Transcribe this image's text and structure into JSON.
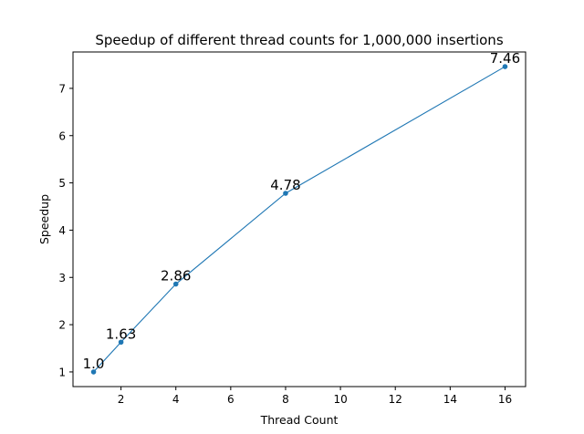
{
  "chart_data": {
    "type": "line",
    "title": "Speedup of different thread counts for 1,000,000 insertions",
    "xlabel": "Thread Count",
    "ylabel": "Speedup",
    "x": [
      1,
      2,
      4,
      8,
      16
    ],
    "y": [
      1.0,
      1.63,
      2.86,
      4.78,
      7.46
    ],
    "data_labels": [
      "1.0",
      "1.63",
      "2.86",
      "4.78",
      "7.46"
    ],
    "xlim": [
      0.25,
      16.75
    ],
    "ylim": [
      0.69,
      7.77
    ],
    "xticks": [
      2,
      4,
      6,
      8,
      10,
      12,
      14,
      16
    ],
    "yticks": [
      1,
      2,
      3,
      4,
      5,
      6,
      7
    ],
    "grid": false,
    "legend": "none",
    "color": "#1f77b4",
    "marker": "circle"
  }
}
